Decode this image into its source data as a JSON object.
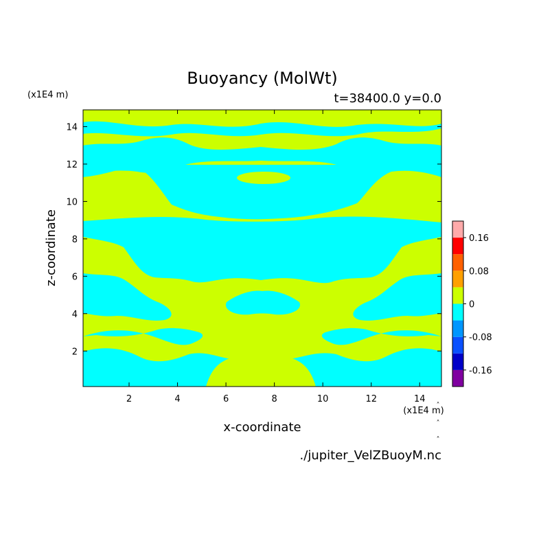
{
  "chart_data": {
    "type": "heatmap",
    "title": "Buoyancy (MolWt)",
    "subtitle": "t=38400.0 y=0.0",
    "xlabel": "x-coordinate",
    "ylabel": "z-coordinate",
    "x_scale_label": "(x1E4 m)",
    "y_scale_label": "(x1E4 m)",
    "xlim": [
      0.1,
      14.9
    ],
    "ylim": [
      0.1,
      14.9
    ],
    "xticks": [
      2,
      4,
      6,
      8,
      10,
      12,
      14
    ],
    "yticks": [
      2,
      4,
      6,
      8,
      10,
      12,
      14
    ],
    "xtick_labels": [
      "2",
      "4",
      "6",
      "8",
      "10",
      "12",
      "14"
    ],
    "ytick_labels": [
      "2",
      "4",
      "6",
      "8",
      "10",
      "12",
      "14"
    ],
    "colorbar": {
      "levels": [
        -0.2,
        -0.16,
        -0.12,
        -0.08,
        -0.04,
        0,
        0.04,
        0.08,
        0.12,
        0.16,
        0.2
      ],
      "colors": [
        "#8000a0",
        "#0000c8",
        "#0a50ff",
        "#0096ff",
        "#00ffff",
        "#ccff00",
        "#ffa000",
        "#ff6000",
        "#ff0000",
        "#ffaaaa"
      ],
      "tick_values": [
        0.16,
        0.08,
        0,
        -0.08,
        -0.16
      ],
      "tick_labels": [
        "0.16",
        "0.08",
        "0",
        "-0.08",
        "-0.16"
      ]
    },
    "fill_levels_present": [
      "-0.04 to 0",
      "0 to 0.04"
    ],
    "regions_negative": [
      {
        "shape": "band",
        "z_range": [
          13.3,
          14.4
        ]
      },
      {
        "shape": "band",
        "z_range": [
          11.3,
          13.0
        ]
      },
      {
        "shape": "band",
        "z_range": [
          8.6,
          10.2
        ],
        "note": "central"
      },
      {
        "shape": "band",
        "z_range": [
          5.0,
          7.6
        ],
        "note": "sides"
      },
      {
        "shape": "band",
        "z_range": [
          2.0,
          3.5
        ],
        "note": "sides"
      },
      {
        "shape": "band",
        "z_range": [
          0.1,
          1.3
        ]
      }
    ],
    "regions_positive": [
      {
        "shape": "ellipse",
        "x": 7.5,
        "z": 11.4
      },
      {
        "shape": "ellipse",
        "x": 6.6,
        "z": 2.4
      },
      {
        "shape": "ellipse",
        "x": 8.4,
        "z": 2.4
      }
    ],
    "colors": {
      "negative": "#00ffff",
      "positive": "#ccff00"
    }
  },
  "footer": {
    "filename": "./jupiter_VelZBuoyM.nc"
  }
}
